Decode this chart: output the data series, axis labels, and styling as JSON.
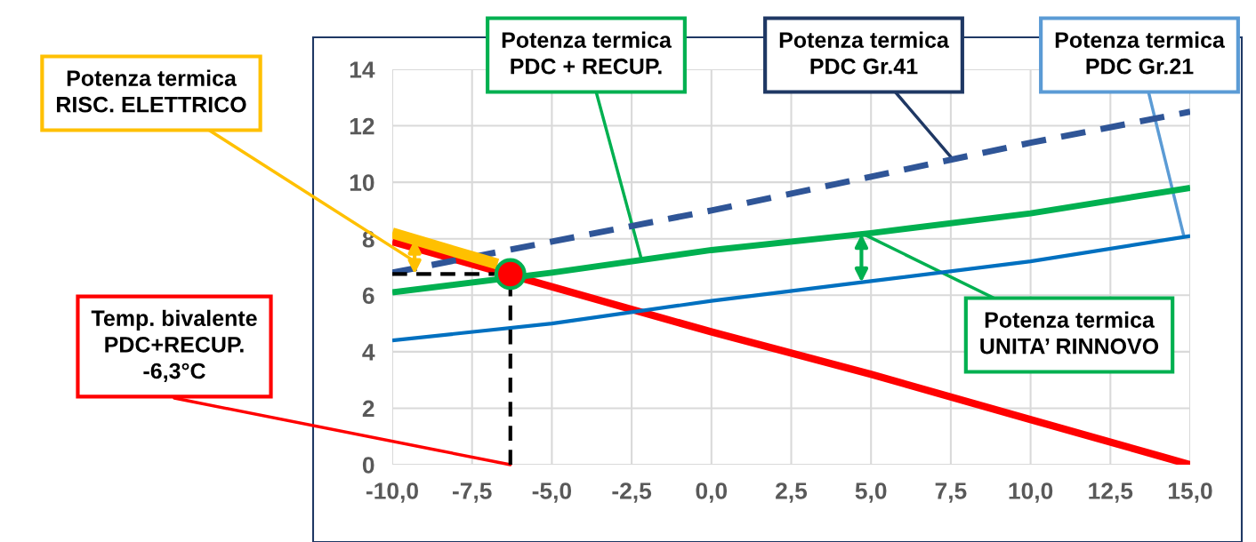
{
  "chart_data": {
    "type": "line",
    "x": [
      -10,
      -5,
      0,
      5,
      10,
      15
    ],
    "series": [
      {
        "color": "#ff0000",
        "values": [
          7.9,
          6.3,
          4.7,
          3.2,
          1.6,
          0.0
        ]
      },
      {
        "color": "#2f5597",
        "values": [
          6.8,
          7.9,
          9.0,
          10.2,
          11.4,
          12.5
        ],
        "line_style": "dashed"
      },
      {
        "color": "#00b050",
        "values": [
          6.1,
          6.8,
          7.6,
          8.2,
          8.9,
          9.8
        ]
      },
      {
        "color": "#0070c0",
        "values": [
          4.4,
          5.0,
          5.8,
          6.5,
          7.2,
          8.1
        ]
      },
      {
        "color": "#ffc000",
        "x": [
          -10,
          -6.7
        ],
        "values": [
          8.2,
          7.1
        ]
      },
      {
        "color": "#000000",
        "x": [
          -10,
          -6.8
        ],
        "values": [
          6.75,
          6.75
        ],
        "line_style": "dashed"
      },
      {
        "color": "#000000",
        "x": [
          -6.3,
          -6.3
        ],
        "values": [
          0,
          6.2
        ],
        "line_style": "dashed"
      },
      {
        "type": "scatter",
        "color": "#ff0000",
        "x": [
          -6.3
        ],
        "values": [
          6.75
        ],
        "marker": "circle"
      }
    ],
    "xlim": [
      -10,
      15
    ],
    "xticks": [
      {
        "value": -10,
        "label": "-10,0"
      },
      {
        "value": -7.5,
        "label": "-7,5"
      },
      {
        "value": -5,
        "label": "-5,0"
      },
      {
        "value": -2.5,
        "label": "-2,5"
      },
      {
        "value": 0,
        "label": "0,0"
      },
      {
        "value": 2.5,
        "label": "2,5"
      },
      {
        "value": 5,
        "label": "5,0"
      },
      {
        "value": 7.5,
        "label": "7,5"
      },
      {
        "value": 10,
        "label": "10,0"
      },
      {
        "value": 12.5,
        "label": "12,5"
      },
      {
        "value": 15,
        "label": "15,0"
      }
    ],
    "ylim": [
      0,
      14
    ],
    "yticks": [
      0,
      2,
      4,
      6,
      8,
      10,
      12,
      14
    ],
    "grid": true,
    "marker": "none",
    "line_style": "solid",
    "annotations": [
      {
        "text": "Potenza termica\nRISC. ELETTRICO",
        "x": -9.3,
        "y": 7.2
      },
      {
        "text": "Potenza termica\nPDC + RECUP.",
        "x": -2.2,
        "y": 7.3
      },
      {
        "text": "Potenza termica\nPDC Gr.41",
        "x": 7.5,
        "y": 10.9
      },
      {
        "text": "Potenza termica\nPDC Gr.21",
        "x": 14.8,
        "y": 8.1
      },
      {
        "text": "Potenza termica\nUNITA’ RINNOVO",
        "x": 4.7,
        "y": 8.2
      },
      {
        "text": "Temp. bivalente\nPDC+RECUP.\n-6,3°C",
        "x": -6.3,
        "y": 0
      }
    ]
  }
}
